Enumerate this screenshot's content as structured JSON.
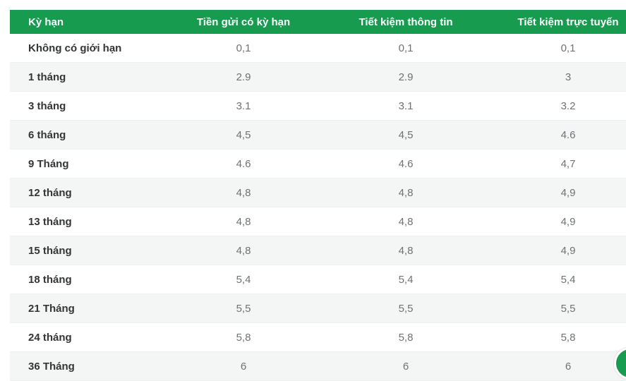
{
  "colors": {
    "accent_green": "#169b4f",
    "stripe_row": "#f3f6f5",
    "term_text": "#333537",
    "rate_text": "#6f7274"
  },
  "table": {
    "columns": [
      "Kỳ hạn",
      "Tiền gửi có kỳ hạn",
      "Tiết kiệm thông tin",
      "Tiết kiệm trực tuyến"
    ],
    "rows": [
      {
        "label": "Không có giới hạn",
        "values": [
          "0,1",
          "0,1",
          "0,1"
        ]
      },
      {
        "label": "1 tháng",
        "values": [
          "2.9",
          "2.9",
          "3"
        ]
      },
      {
        "label": "3 tháng",
        "values": [
          "3.1",
          "3.1",
          "3.2"
        ]
      },
      {
        "label": "6 tháng",
        "values": [
          "4,5",
          "4,5",
          "4.6"
        ]
      },
      {
        "label": "9 Tháng",
        "values": [
          "4.6",
          "4.6",
          "4,7"
        ]
      },
      {
        "label": "12 tháng",
        "values": [
          "4,8",
          "4,8",
          "4,9"
        ]
      },
      {
        "label": "13 tháng",
        "values": [
          "4,8",
          "4,8",
          "4,9"
        ]
      },
      {
        "label": "15 tháng",
        "values": [
          "4,8",
          "4,8",
          "4,9"
        ]
      },
      {
        "label": "18 tháng",
        "values": [
          "5,4",
          "5,4",
          "5,4"
        ]
      },
      {
        "label": "21 Tháng",
        "values": [
          "5,5",
          "5,5",
          "5,5"
        ]
      },
      {
        "label": "24 tháng",
        "values": [
          "5,8",
          "5,8",
          "5,8"
        ]
      },
      {
        "label": "36 Tháng",
        "values": [
          "6",
          "6",
          "6"
        ]
      }
    ]
  }
}
